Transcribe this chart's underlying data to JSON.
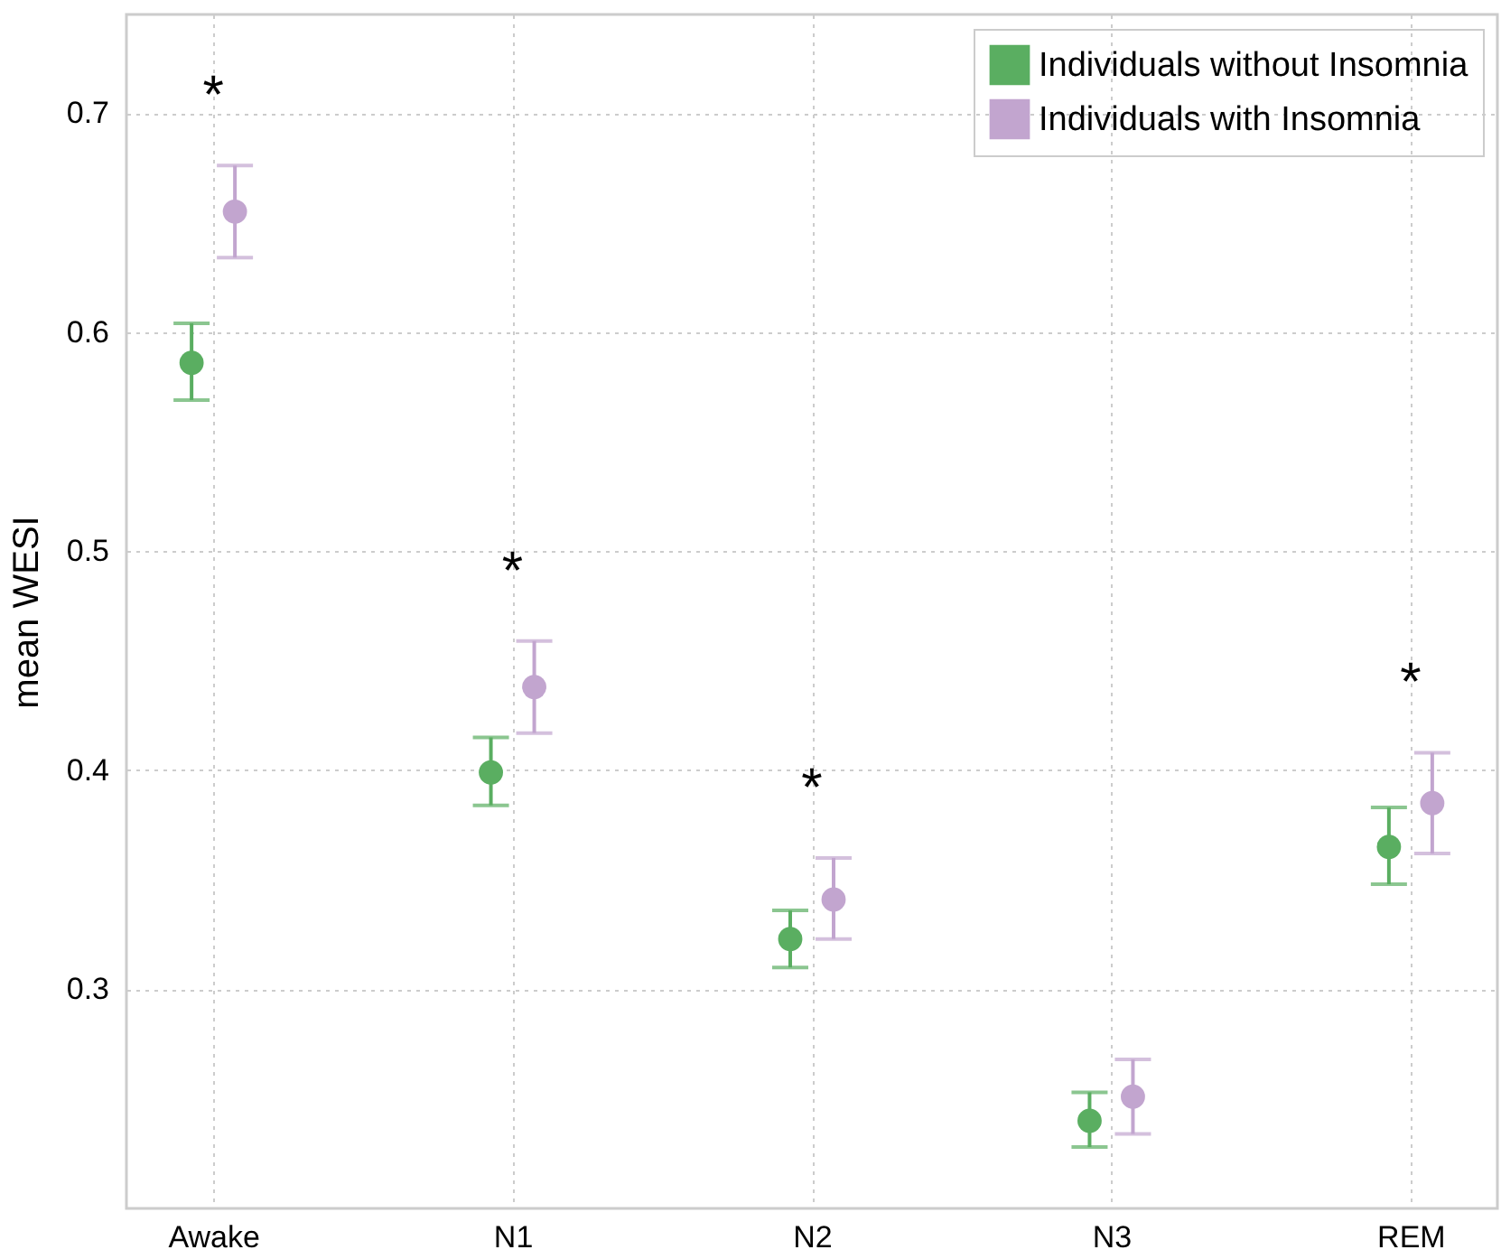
{
  "chart_data": {
    "type": "scatter",
    "ylabel": "mean WESI",
    "categories": [
      "Awake",
      "N1",
      "N2",
      "N3",
      "REM"
    ],
    "series": [
      {
        "name": "Individuals without Insomnia",
        "color": "#5aae61",
        "values": [
          0.586,
          0.399,
          0.323,
          0.24,
          0.365
        ],
        "errors": [
          [
            0.569,
            0.604
          ],
          [
            0.384,
            0.415
          ],
          [
            0.31,
            0.336
          ],
          [
            0.228,
            0.253
          ],
          [
            0.348,
            0.383
          ]
        ]
      },
      {
        "name": "Individuals with Insomnia",
        "color": "#c2a5cf",
        "values": [
          0.655,
          0.438,
          0.341,
          0.251,
          0.385
        ],
        "errors": [
          [
            0.634,
            0.676
          ],
          [
            0.417,
            0.459
          ],
          [
            0.323,
            0.36
          ],
          [
            0.234,
            0.268
          ],
          [
            0.362,
            0.408
          ]
        ]
      }
    ],
    "ylim": [
      0.2,
      0.745
    ],
    "yticks": [
      0.3,
      0.4,
      0.5,
      0.6,
      0.7
    ],
    "annotations": [
      "*",
      "*",
      "*",
      "*"
    ],
    "grid": true,
    "legend": "top right",
    "marker": "circle"
  }
}
